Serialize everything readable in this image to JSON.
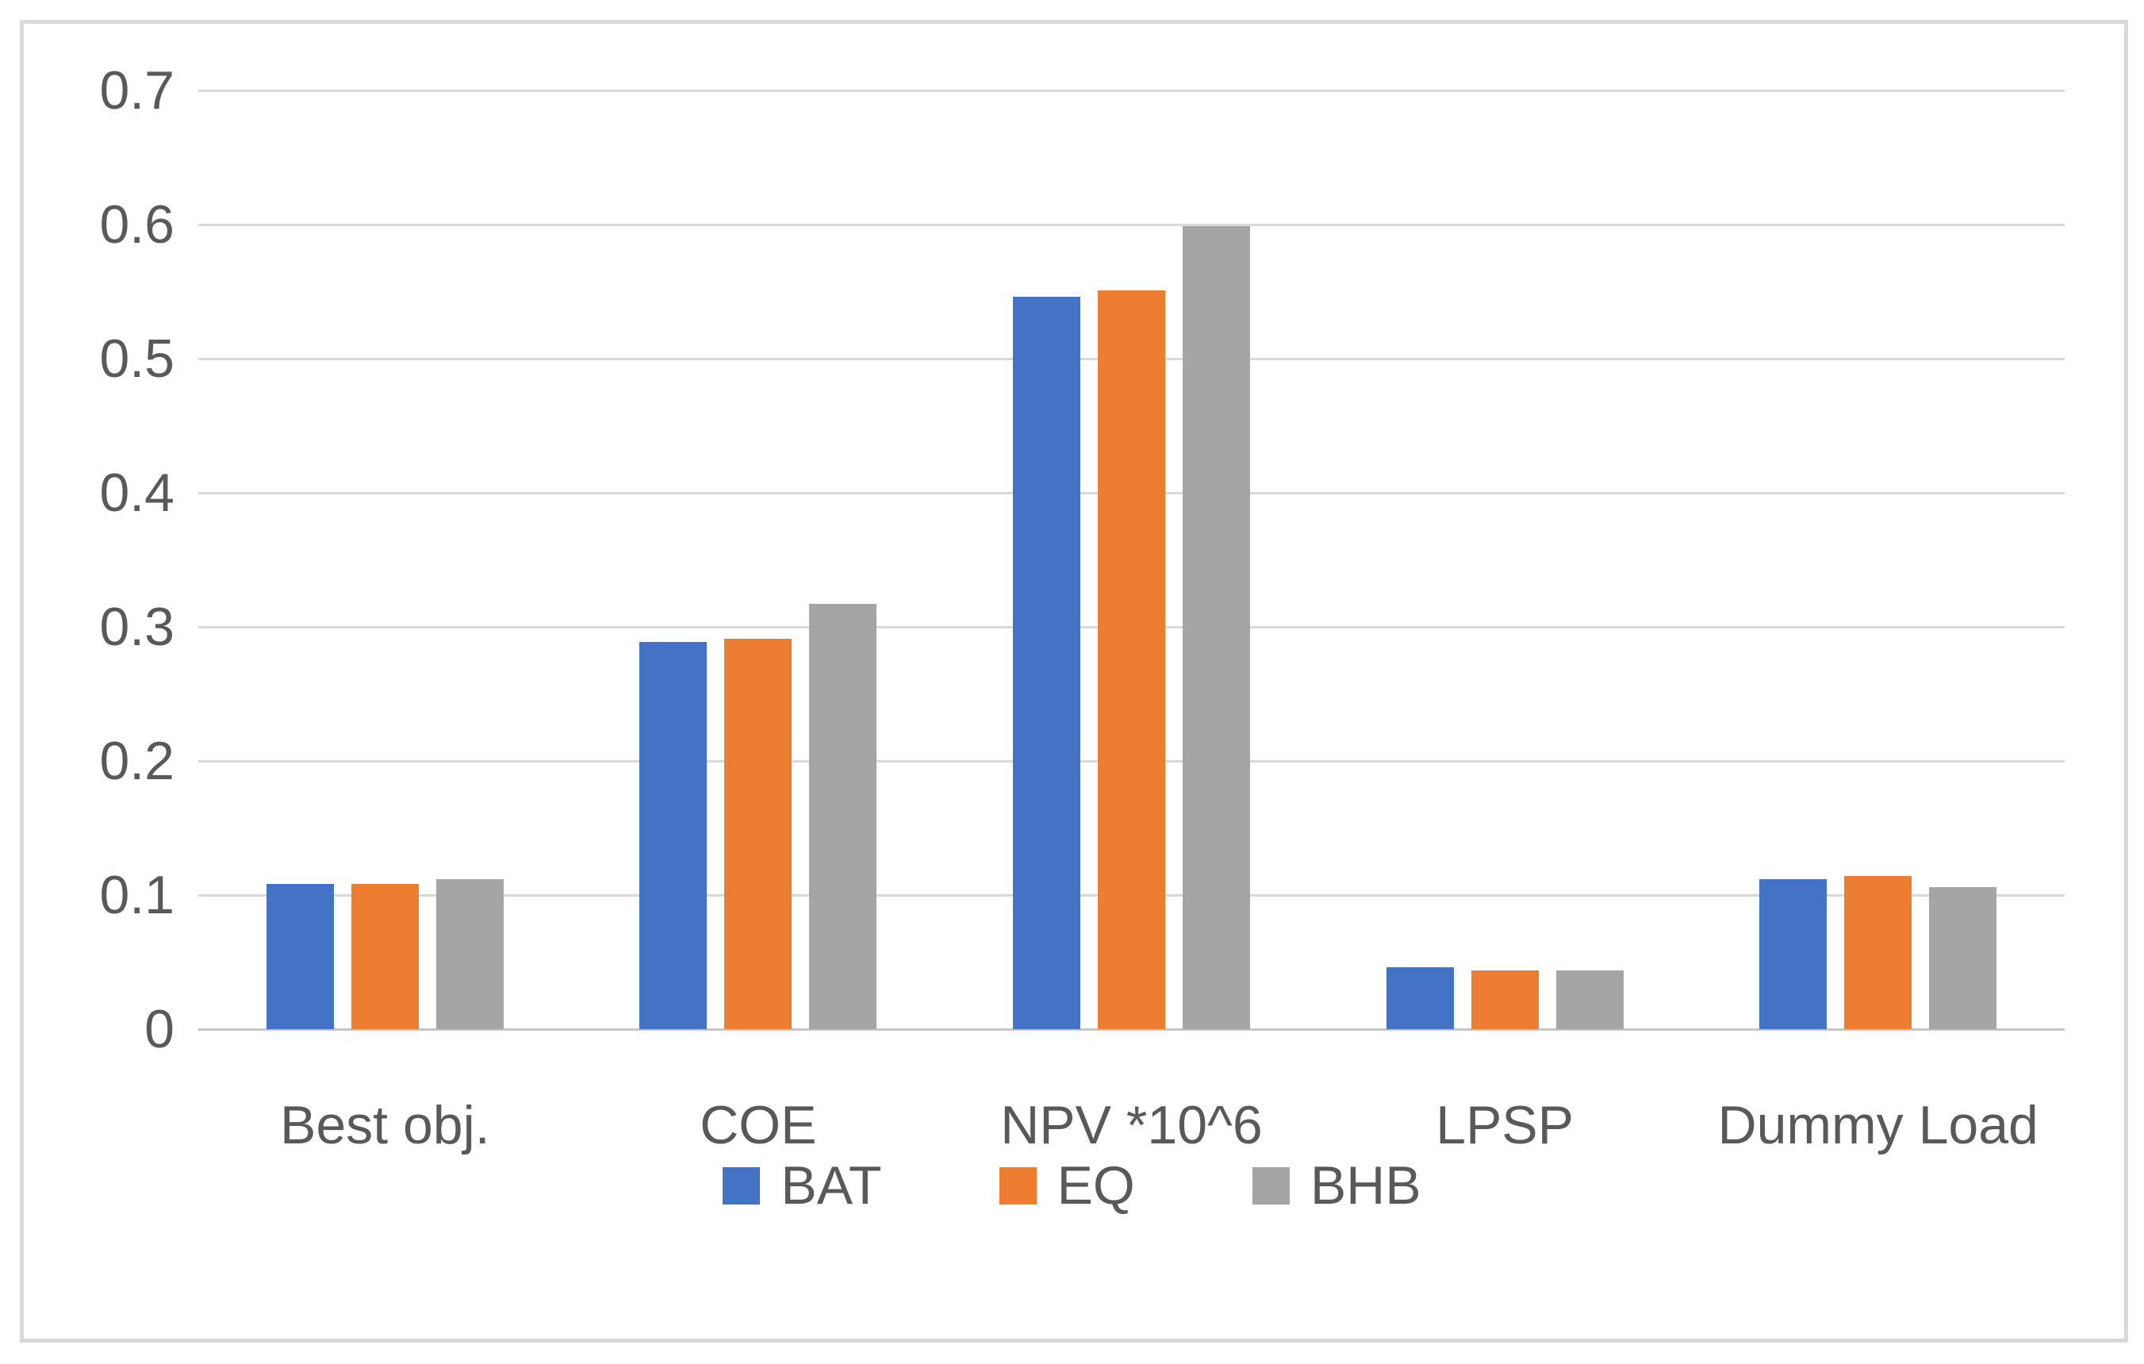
{
  "chart_data": {
    "type": "bar",
    "title": "",
    "xlabel": "",
    "ylabel": "",
    "categories": [
      "Best obj.",
      "COE",
      "NPV *10^6",
      "LPSP",
      "Dummy Load"
    ],
    "series": [
      {
        "name": "BAT",
        "color": "#4472C4",
        "values": [
          0.108,
          0.289,
          0.546,
          0.046,
          0.112
        ]
      },
      {
        "name": "EQ",
        "color": "#ED7D31",
        "values": [
          0.108,
          0.291,
          0.551,
          0.044,
          0.114
        ]
      },
      {
        "name": "BHB",
        "color": "#A5A5A5",
        "values": [
          0.112,
          0.317,
          0.599,
          0.044,
          0.106
        ]
      }
    ],
    "ylim": [
      0,
      0.7
    ],
    "ytick_step": 0.1,
    "yticks": [
      "0",
      "0.1",
      "0.2",
      "0.3",
      "0.4",
      "0.5",
      "0.6",
      "0.7"
    ],
    "grid": true,
    "legend_position": "bottom-center"
  },
  "style": {
    "text_color": "#595959",
    "gridline_color": "#D9D9D9",
    "axis_line_color": "#C6C6C6",
    "frame_border_color": "#D9D9D9",
    "background_color": "#FFFFFF"
  }
}
